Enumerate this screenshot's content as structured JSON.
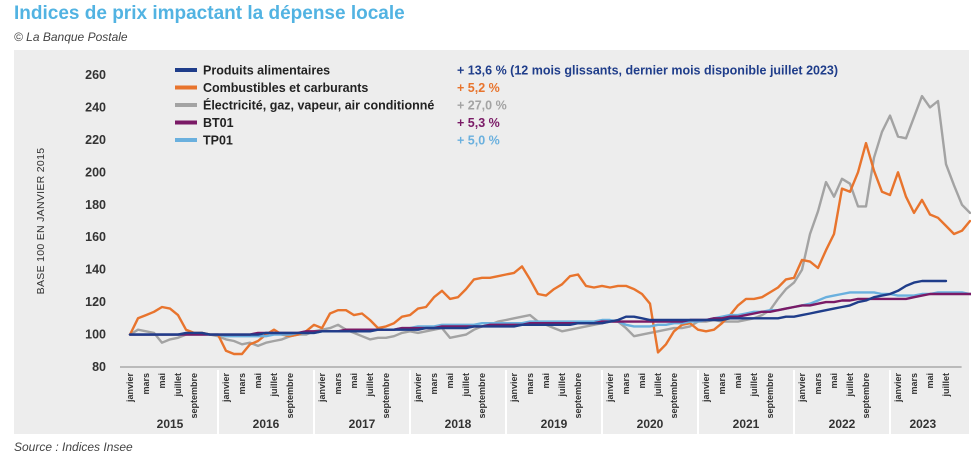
{
  "title": "Indices de prix impactant la dépense locale",
  "subtitle": "© La Banque Postale",
  "source": "Source : Indices Insee",
  "chart_data": {
    "type": "line",
    "ylabel": "BASE 100 EN JANVIER 2015",
    "ylim": [
      80,
      260
    ],
    "yticks": [
      80,
      100,
      120,
      140,
      160,
      180,
      200,
      220,
      240,
      260
    ],
    "grid": false,
    "legend_position": "top",
    "years": [
      "2015",
      "2016",
      "2017",
      "2018",
      "2019",
      "2020",
      "2021",
      "2022",
      "2023"
    ],
    "month_labels": [
      "janvier",
      "mars",
      "mai",
      "juillet",
      "septembre"
    ],
    "series": [
      {
        "name": "Produits alimentaires",
        "note": "+ 13,6 % (12 mois glissants, dernier mois disponible juillet 2023)",
        "color": "#1f3d8a",
        "values": [
          100,
          100,
          100,
          100,
          100,
          100,
          100,
          101,
          101,
          101,
          100,
          100,
          100,
          100,
          100,
          100,
          100,
          101,
          101,
          101,
          101,
          101,
          101,
          101,
          102,
          102,
          102,
          102,
          102,
          102,
          102,
          103,
          103,
          103,
          103,
          103,
          103,
          104,
          104,
          104,
          104,
          104,
          104,
          105,
          105,
          105,
          105,
          105,
          105,
          106,
          106,
          106,
          106,
          106,
          106,
          106,
          107,
          107,
          107,
          107,
          108,
          109,
          111,
          111,
          110,
          109,
          109,
          109,
          109,
          109,
          109,
          109,
          109,
          109,
          109,
          110,
          110,
          110,
          110,
          110,
          110,
          110,
          111,
          111,
          112,
          113,
          114,
          115,
          116,
          117,
          118,
          120,
          121,
          123,
          124,
          125,
          127,
          130,
          132,
          133,
          133,
          133,
          133
        ]
      },
      {
        "name": "Combustibles et carburants",
        "note": "+ 5,2 %",
        "color": "#e8742d",
        "values": [
          100,
          110,
          112,
          114,
          117,
          116,
          112,
          103,
          101,
          101,
          100,
          100,
          90,
          88,
          88,
          94,
          96,
          100,
          103,
          100,
          99,
          100,
          102,
          106,
          104,
          113,
          115,
          115,
          112,
          113,
          109,
          104,
          105,
          107,
          111,
          112,
          116,
          117,
          123,
          127,
          122,
          123,
          128,
          134,
          135,
          135,
          136,
          137,
          138,
          142,
          134,
          125,
          124,
          128,
          131,
          136,
          137,
          130,
          129,
          130,
          129,
          130,
          130,
          128,
          125,
          119,
          89,
          94,
          102,
          106,
          107,
          103,
          102,
          103,
          107,
          112,
          118,
          122,
          122,
          123,
          126,
          129,
          134,
          135,
          146,
          145,
          141,
          152,
          162,
          190,
          188,
          200,
          218,
          201,
          188,
          186,
          200,
          185,
          175,
          183,
          174,
          172,
          167,
          162,
          164,
          170
        ]
      },
      {
        "name": "Électricité, gaz, vapeur, air conditionné",
        "note": "+ 27,0 %",
        "color": "#a3a3a3",
        "values": [
          100,
          103,
          102,
          101,
          95,
          97,
          98,
          100,
          101,
          101,
          100,
          99,
          97,
          96,
          94,
          95,
          93,
          95,
          96,
          97,
          99,
          100,
          100,
          102,
          103,
          104,
          106,
          103,
          101,
          99,
          97,
          98,
          98,
          99,
          101,
          102,
          101,
          102,
          103,
          104,
          98,
          99,
          100,
          103,
          105,
          106,
          108,
          109,
          110,
          111,
          112,
          108,
          106,
          104,
          102,
          103,
          104,
          105,
          106,
          107,
          108,
          108,
          104,
          99,
          100,
          101,
          102,
          103,
          104,
          104,
          105,
          108,
          108,
          109,
          108,
          108,
          108,
          109,
          110,
          112,
          115,
          122,
          128,
          132,
          140,
          162,
          176,
          194,
          185,
          196,
          193,
          179,
          179,
          209,
          225,
          235,
          222,
          221,
          234,
          247,
          240,
          244,
          205,
          192,
          180,
          175
        ]
      },
      {
        "name": "BT01",
        "note": "+ 5,3 %",
        "color": "#7a1a66",
        "values": [
          100,
          100,
          100,
          100,
          100,
          100,
          100,
          100,
          100,
          100,
          100,
          100,
          100,
          100,
          100,
          100,
          101,
          101,
          101,
          101,
          101,
          101,
          102,
          102,
          102,
          102,
          102,
          103,
          103,
          103,
          103,
          103,
          103,
          103,
          104,
          104,
          104,
          104,
          104,
          105,
          105,
          105,
          105,
          105,
          105,
          106,
          106,
          106,
          106,
          106,
          107,
          107,
          107,
          107,
          107,
          107,
          107,
          107,
          107,
          108,
          108,
          108,
          108,
          108,
          108,
          108,
          108,
          108,
          108,
          108,
          109,
          109,
          109,
          110,
          110,
          111,
          111,
          112,
          113,
          114,
          114,
          115,
          116,
          117,
          118,
          118,
          119,
          120,
          120,
          121,
          121,
          122,
          122,
          122,
          122,
          122,
          122,
          122,
          123,
          124,
          125,
          125,
          125,
          125,
          125,
          125,
          125
        ]
      },
      {
        "name": "TP01",
        "note": "+ 5,0 %",
        "color": "#6ab0de",
        "values": [
          100,
          100,
          100,
          100,
          100,
          100,
          100,
          100,
          100,
          100,
          100,
          100,
          99,
          99,
          99,
          99,
          99,
          99,
          100,
          100,
          100,
          101,
          101,
          101,
          102,
          102,
          102,
          102,
          102,
          103,
          103,
          103,
          103,
          103,
          104,
          104,
          105,
          105,
          105,
          106,
          106,
          106,
          106,
          106,
          107,
          107,
          107,
          107,
          107,
          107,
          108,
          108,
          108,
          108,
          108,
          108,
          108,
          108,
          108,
          109,
          109,
          108,
          106,
          105,
          105,
          105,
          106,
          106,
          107,
          107,
          108,
          108,
          109,
          110,
          111,
          112,
          112,
          113,
          114,
          114,
          115,
          115,
          116,
          117,
          118,
          119,
          121,
          123,
          124,
          125,
          126,
          126,
          126,
          126,
          125,
          125,
          124,
          124,
          124,
          125,
          125,
          126,
          126,
          126,
          126,
          125,
          125
        ]
      }
    ]
  }
}
